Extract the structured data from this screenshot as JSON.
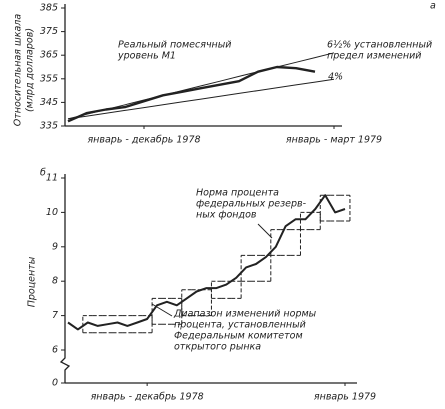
{
  "chart_data": [
    {
      "type": "line",
      "panel": "а",
      "ylabel": [
        "Относительная шкала",
        "(млрд долларов)"
      ],
      "ylim": [
        335,
        385
      ],
      "yticks": [
        335,
        345,
        355,
        365,
        375,
        385
      ],
      "categories": [
        null,
        null,
        null,
        null,
        "январь - декабрь 1978",
        null,
        null,
        null,
        null,
        null,
        null,
        null,
        null,
        null,
        "январь - март 1979"
      ],
      "series": [
        {
          "label": [
            "Реальный помесячный",
            "уровень М1"
          ],
          "color": "#222",
          "width": 2.4,
          "values": [
            337,
            340.5,
            342,
            343,
            345.5,
            348,
            349.5,
            351,
            352.5,
            354,
            358,
            360,
            359.5,
            358,
            null
          ]
        },
        {
          "label": [
            "6½% установленный",
            "предел изменений"
          ],
          "color": "#222",
          "width": 1,
          "values": [
            338,
            340,
            342,
            344,
            346,
            348,
            350,
            352,
            354,
            356,
            358,
            360,
            362,
            364,
            366
          ]
        },
        {
          "label": [
            "4%"
          ],
          "color": "#222",
          "width": 1,
          "values": [
            338,
            339.2,
            340.4,
            341.6,
            342.8,
            344,
            345.2,
            346.4,
            347.6,
            348.8,
            350,
            351.2,
            352.4,
            353.6,
            354.8
          ]
        }
      ]
    },
    {
      "type": "step-band",
      "panel": "б",
      "ylabel": [
        "Проценты"
      ],
      "ylim": [
        0,
        11
      ],
      "y_break": [
        0,
        6
      ],
      "yticks": [
        0,
        6,
        7,
        8,
        9,
        10,
        11
      ],
      "categories": [
        null,
        null,
        null,
        null,
        null,
        null,
        null,
        null,
        "январь - декабрь 1978",
        null,
        null,
        null,
        null,
        null,
        null,
        null,
        null,
        null,
        null,
        null,
        null,
        null,
        null,
        null,
        null,
        null,
        null,
        null,
        "январь 1979"
      ],
      "series": [
        {
          "label": [
            "Норма процента",
            "федеральных резерв-",
            "ных фондов"
          ],
          "color": "#222",
          "width": 2,
          "values": [
            6.8,
            6.6,
            6.8,
            6.7,
            6.75,
            6.8,
            6.7,
            6.8,
            6.9,
            7.3,
            7.4,
            7.3,
            7.5,
            7.7,
            7.8,
            7.8,
            7.9,
            8.1,
            8.4,
            8.5,
            8.7,
            9.0,
            9.6,
            9.8,
            9.8,
            10.1,
            10.5,
            10.0,
            10.1
          ]
        }
      ],
      "band": {
        "label": [
          "Диапазон изменений нормы",
          "процента, установленный",
          "Федеральным комитетом",
          "открытого рынка"
        ],
        "color": "#222",
        "low": [
          null,
          null,
          6.5,
          6.5,
          6.5,
          6.5,
          6.5,
          6.5,
          6.5,
          6.75,
          6.75,
          6.75,
          7.0,
          7.0,
          7.0,
          7.5,
          7.5,
          7.5,
          8.0,
          8.0,
          8.0,
          8.75,
          8.75,
          8.75,
          9.5,
          9.5,
          9.75,
          9.75,
          9.75
        ],
        "high": [
          null,
          null,
          7.0,
          7.0,
          7.0,
          7.0,
          7.0,
          7.0,
          7.0,
          7.5,
          7.5,
          7.5,
          7.75,
          7.75,
          7.75,
          8.0,
          8.0,
          8.0,
          8.75,
          8.75,
          8.75,
          9.5,
          9.5,
          9.5,
          10.0,
          10.0,
          10.5,
          10.5,
          10.5
        ]
      }
    }
  ]
}
